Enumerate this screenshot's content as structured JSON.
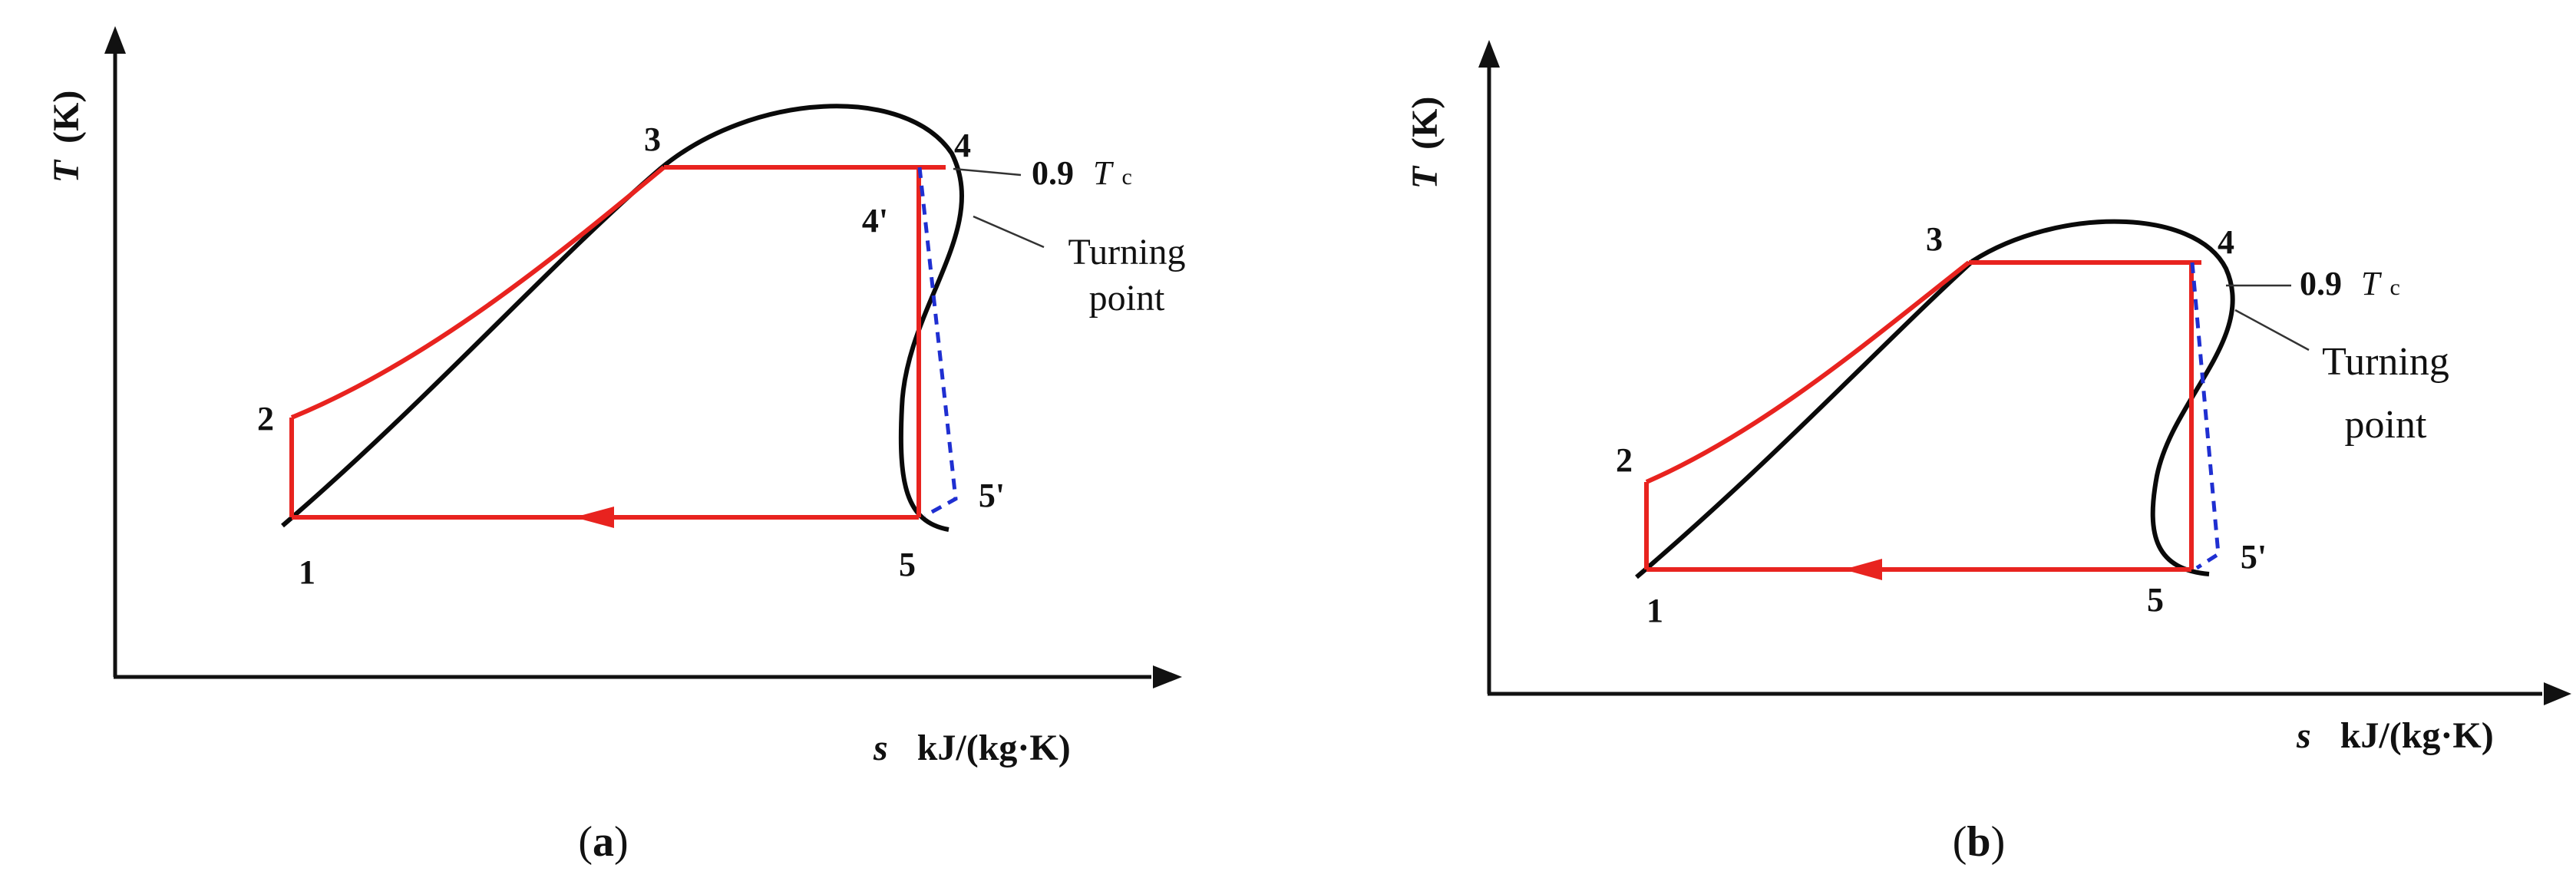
{
  "colors": {
    "axis": "#111111",
    "dome": "#0a0a0a",
    "cycle": "#e8231f",
    "dashed": "#1f2fd1",
    "leader": "#333333",
    "text": "#111111"
  },
  "panels": [
    {
      "id": "a",
      "caption": "a",
      "y_axis": {
        "symbol": "T",
        "unit": "(K)"
      },
      "x_axis": {
        "symbol": "s",
        "unit": "kJ/(kg·K)"
      },
      "states": [
        "1",
        "2",
        "3",
        "4",
        "4'",
        "5",
        "5'"
      ],
      "isotherm_label": {
        "value": "0.9",
        "symbol": "T",
        "subscript": "c"
      },
      "turning_point_lines": [
        "Turning",
        "point"
      ]
    },
    {
      "id": "b",
      "caption": "b",
      "y_axis": {
        "symbol": "T",
        "unit": "(K)"
      },
      "x_axis": {
        "symbol": "s",
        "unit": "kJ/(kg·K)"
      },
      "states": [
        "1",
        "2",
        "3",
        "4",
        "5",
        "5'"
      ],
      "isotherm_label": {
        "value": "0.9",
        "symbol": "T",
        "subscript": "c"
      },
      "turning_point_lines": [
        "Turning",
        "point"
      ]
    }
  ]
}
